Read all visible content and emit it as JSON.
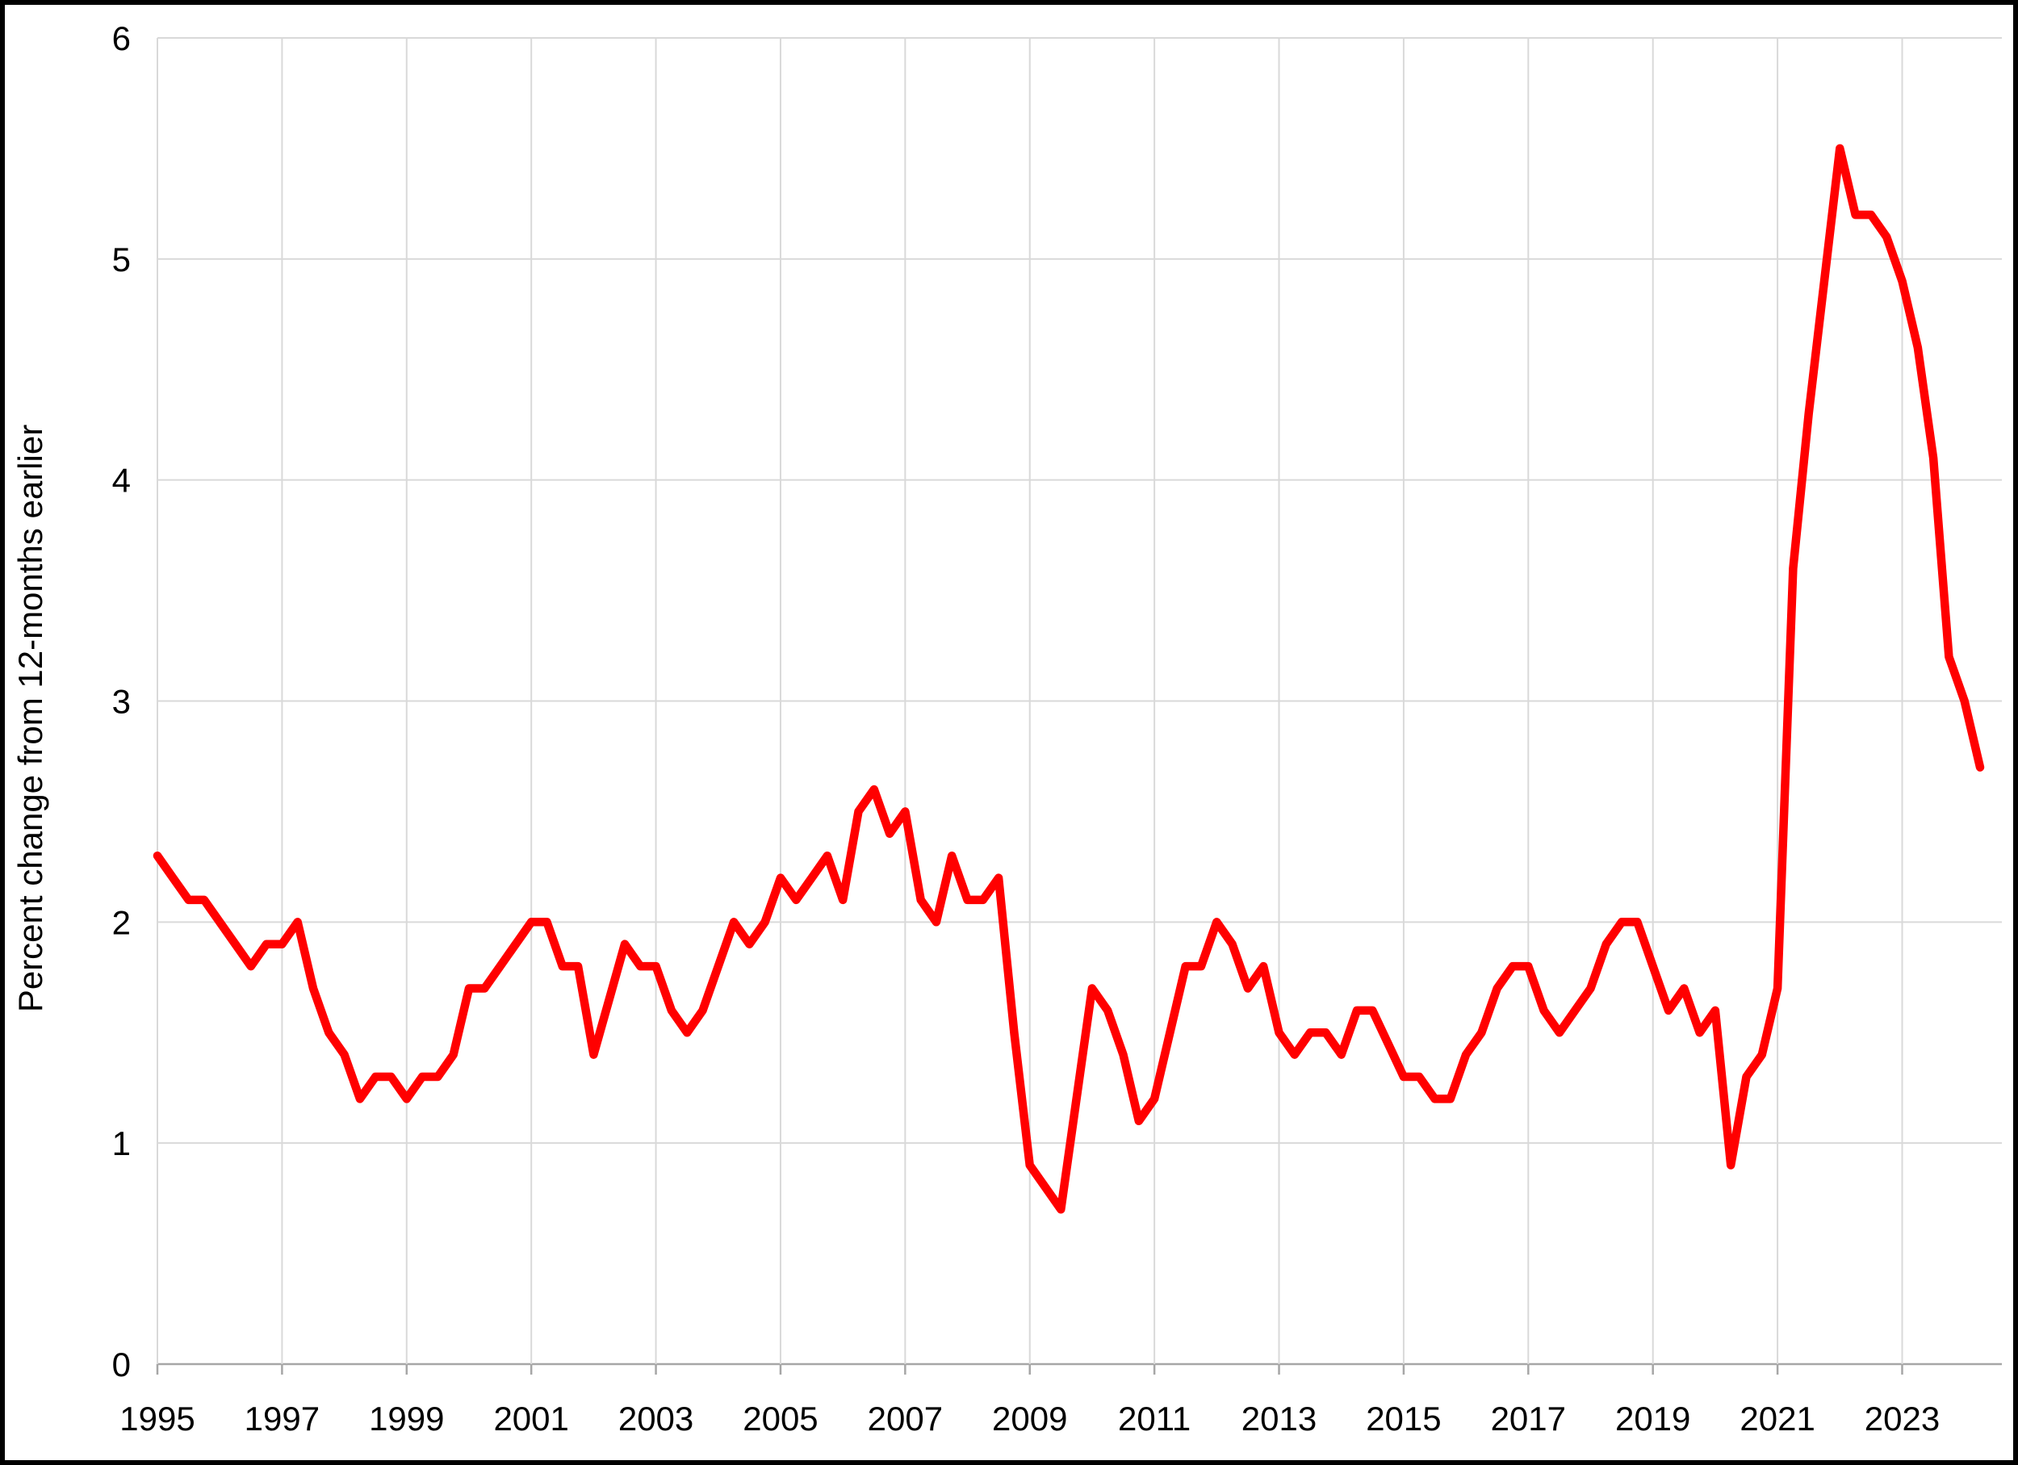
{
  "chart_data": {
    "type": "line",
    "title": "",
    "xlabel": "",
    "ylabel": "Percent change from 12-months earlier",
    "x_start": 1995.0,
    "x_step": 0.25,
    "frequency": "quarterly",
    "series": [
      {
        "name": "percent-change-12-month",
        "color": "#ff0000",
        "values": [
          2.3,
          2.2,
          2.1,
          2.1,
          2.0,
          1.9,
          1.8,
          1.9,
          1.9,
          2.0,
          1.7,
          1.5,
          1.4,
          1.2,
          1.3,
          1.3,
          1.2,
          1.3,
          1.3,
          1.4,
          1.7,
          1.7,
          1.8,
          1.9,
          2.0,
          2.0,
          1.8,
          1.8,
          1.4,
          1.65,
          1.9,
          1.8,
          1.8,
          1.6,
          1.5,
          1.6,
          1.8,
          2.0,
          1.9,
          2.0,
          2.2,
          2.1,
          2.2,
          2.3,
          2.1,
          2.5,
          2.6,
          2.4,
          2.5,
          2.1,
          2.0,
          2.3,
          2.1,
          2.1,
          2.2,
          1.5,
          0.9,
          0.8,
          0.7,
          1.2,
          1.7,
          1.6,
          1.4,
          1.1,
          1.2,
          1.5,
          1.8,
          1.8,
          2.0,
          1.9,
          1.7,
          1.8,
          1.5,
          1.4,
          1.5,
          1.5,
          1.4,
          1.6,
          1.6,
          1.45,
          1.3,
          1.3,
          1.2,
          1.2,
          1.4,
          1.5,
          1.7,
          1.8,
          1.8,
          1.6,
          1.5,
          1.6,
          1.7,
          1.9,
          2.0,
          2.0,
          1.8,
          1.6,
          1.7,
          1.5,
          1.6,
          0.9,
          1.3,
          1.4,
          1.7,
          3.6,
          4.3,
          4.9,
          5.5,
          5.2,
          5.2,
          5.1,
          4.9,
          4.6,
          4.1,
          3.2,
          3.0,
          2.7
        ]
      }
    ],
    "x_ticks": [
      1995,
      1997,
      1999,
      2001,
      2003,
      2005,
      2007,
      2009,
      2011,
      2013,
      2015,
      2017,
      2019,
      2021,
      2023
    ],
    "y_ticks": [
      0,
      1,
      2,
      3,
      4,
      5,
      6
    ],
    "xlim": [
      1995,
      2024.6
    ],
    "ylim": [
      0,
      6
    ],
    "grid": true,
    "legend": false
  },
  "colors": {
    "line": "#ff0000",
    "gridline": "#d9d9d9",
    "axis": "#a6a6a6",
    "text": "#000000",
    "background": "#ffffff",
    "border": "#000000"
  }
}
